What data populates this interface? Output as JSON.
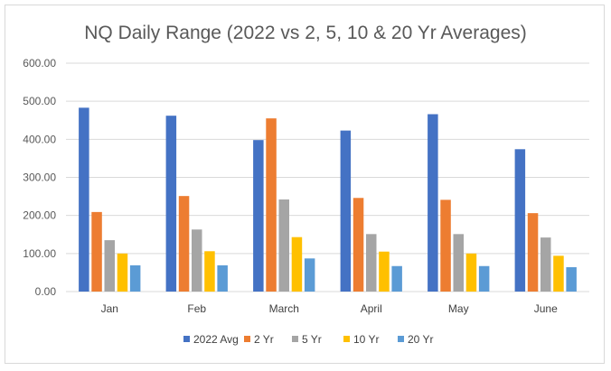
{
  "chart_data": {
    "type": "bar",
    "title": "NQ Daily Range (2022 vs 2, 5, 10 & 20 Yr Averages)",
    "categories": [
      "Jan",
      "Feb",
      "March",
      "April",
      "May",
      "June"
    ],
    "series": [
      {
        "name": "2022 Avg",
        "color": "#4472C4",
        "values": [
          483,
          462,
          398,
          423,
          466,
          374
        ]
      },
      {
        "name": "2 Yr",
        "color": "#ED7D31",
        "values": [
          209,
          251,
          455,
          246,
          241,
          206
        ]
      },
      {
        "name": "5 Yr",
        "color": "#A5A5A5",
        "values": [
          135,
          163,
          242,
          151,
          151,
          142
        ]
      },
      {
        "name": "10 Yr",
        "color": "#FFC000",
        "values": [
          100,
          106,
          143,
          105,
          100,
          94
        ]
      },
      {
        "name": "20 Yr",
        "color": "#5B9BD5",
        "values": [
          69,
          69,
          87,
          67,
          67,
          64
        ]
      }
    ],
    "y_ticks": [
      "0.00",
      "100.00",
      "200.00",
      "300.00",
      "400.00",
      "500.00",
      "600.00"
    ],
    "ylim": [
      0,
      600
    ],
    "grid": true,
    "legend_position": "bottom"
  }
}
